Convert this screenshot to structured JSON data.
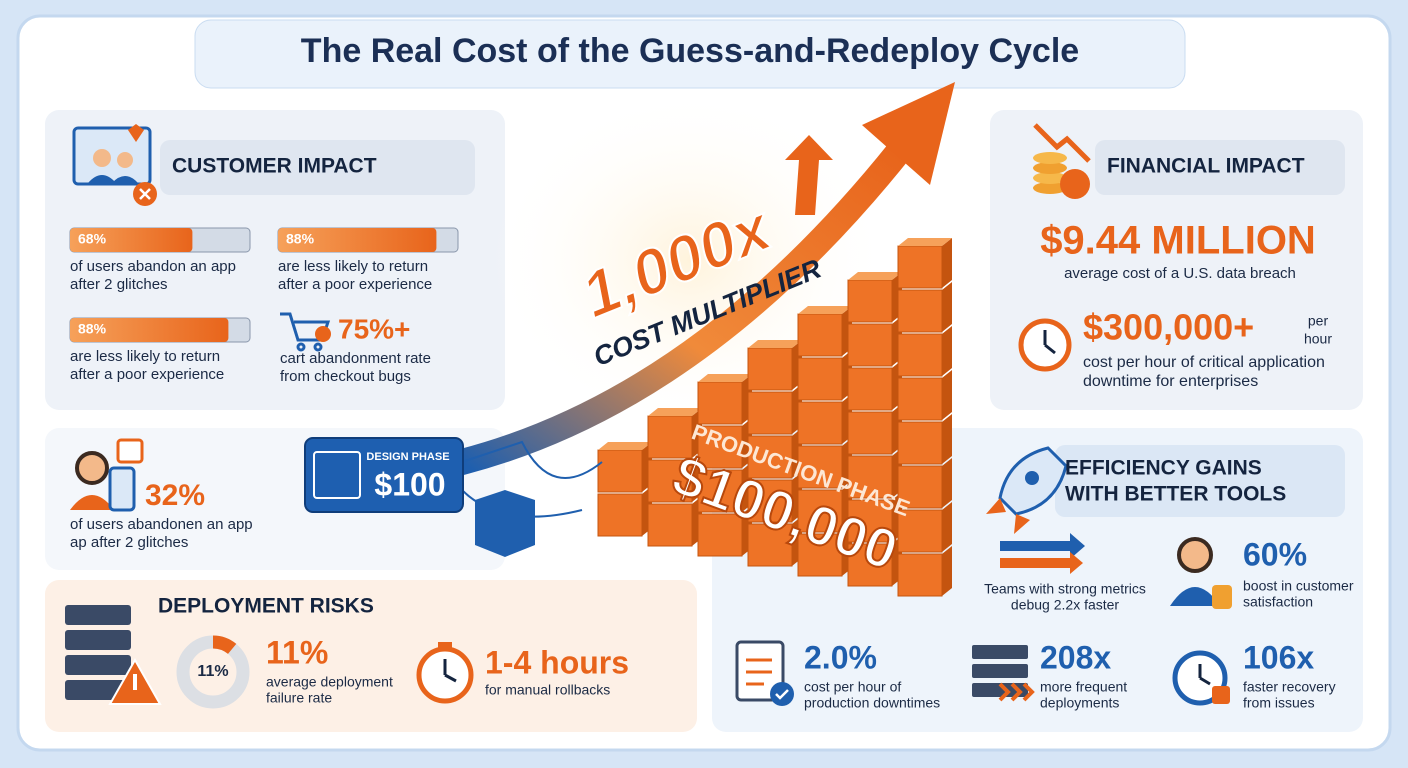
{
  "title": "The Real Cost of the Guess-and-Redeploy Cycle",
  "customer_impact": {
    "heading": "CUSTOMER IMPACT",
    "bars": [
      {
        "value": 68,
        "label": "68%",
        "lines": [
          "of users abandon an app",
          "after 2 glitches"
        ]
      },
      {
        "value": 88,
        "label": "88%",
        "lines": [
          "are less likely to return",
          "after a poor experience"
        ]
      },
      {
        "value": 88,
        "label": "88%",
        "lines": [
          "are less likely to return",
          "after a poor experience"
        ]
      }
    ],
    "cart": {
      "stat": "75%+",
      "lines": [
        "cart abandonment rate",
        "from checkout bugs"
      ]
    }
  },
  "mobile": {
    "stat": "32%",
    "lines": [
      "of users abandonen an app",
      "ap after 2 glitches"
    ]
  },
  "deployment_risks": {
    "heading": "DEPLOYMENT RISKS",
    "donut": {
      "value": 11,
      "label": "11%"
    },
    "stat": "11%",
    "lines": [
      "average deployment",
      "failure rate"
    ],
    "rollback": {
      "stat": "1-4 hours",
      "lines": [
        "for manual rollbacks"
      ]
    }
  },
  "cost_multiplier": {
    "multiplier": "1,000x",
    "caption": "COST MULTIPLIER",
    "design": {
      "label": "DESIGN PHASE",
      "cost": "$100"
    },
    "production": {
      "label": "PRODUCTION PHASE",
      "cost": "$100,000"
    }
  },
  "financial_impact": {
    "heading": "FINANCIAL IMPACT",
    "breach": {
      "stat": "$9.44 MILLION",
      "lines": [
        "average cost of a U.S. data breach"
      ]
    },
    "downtime": {
      "stat": "$300,000+",
      "unit": [
        "per",
        "hour"
      ],
      "lines": [
        "cost per hour of critical application",
        "downtime for enterprises"
      ]
    }
  },
  "efficiency": {
    "heading": [
      "EFFICIENCY GAINS",
      "WITH BETTER TOOLS"
    ],
    "debug": {
      "lines": [
        "Teams with strong metrics",
        "debug 2.2x faster"
      ]
    },
    "satisfaction": {
      "stat": "60%",
      "lines": [
        "boost in customer",
        "satisfaction"
      ]
    },
    "metrics": [
      {
        "stat": "2.0%",
        "lines": [
          "cost per hour of",
          "production downtimes"
        ]
      },
      {
        "stat": "208x",
        "lines": [
          "more frequent",
          "deployments"
        ]
      },
      {
        "stat": "106x",
        "lines": [
          "faster recovery",
          "from issues"
        ]
      }
    ]
  }
}
